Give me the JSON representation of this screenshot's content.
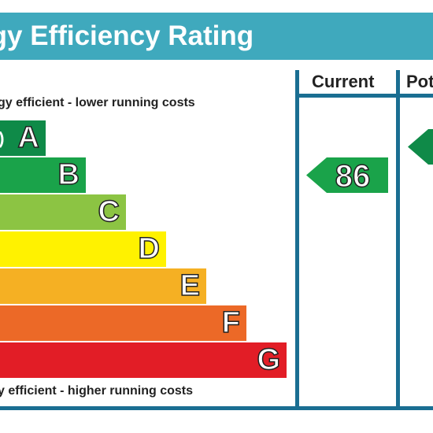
{
  "title": "rgy Efficiency Rating",
  "columns": {
    "current": "Current",
    "potential": "Pot"
  },
  "notes": {
    "top": "gy efficient - lower running costs",
    "bottom": "y efficient - higher running costs"
  },
  "bands": [
    {
      "letter": "A",
      "prefix": "s)",
      "color": "#0f8a48"
    },
    {
      "letter": "B",
      "prefix": "",
      "color": "#1aa34a"
    },
    {
      "letter": "C",
      "prefix": "",
      "color": "#8cc443"
    },
    {
      "letter": "D",
      "prefix": "",
      "color": "#fff200"
    },
    {
      "letter": "E",
      "prefix": "",
      "color": "#f5b023"
    },
    {
      "letter": "F",
      "prefix": "",
      "color": "#ec6927"
    },
    {
      "letter": "G",
      "prefix": "",
      "color": "#e21d26"
    }
  ],
  "ratings": {
    "current": {
      "value": "86",
      "band": "B",
      "color": "#1aa34a"
    },
    "potential": {
      "value": "",
      "band": "A",
      "color": "#0f8a48"
    }
  },
  "colors": {
    "title_bar": "#3fa9bd",
    "frame_lines": "#1a6e92"
  }
}
